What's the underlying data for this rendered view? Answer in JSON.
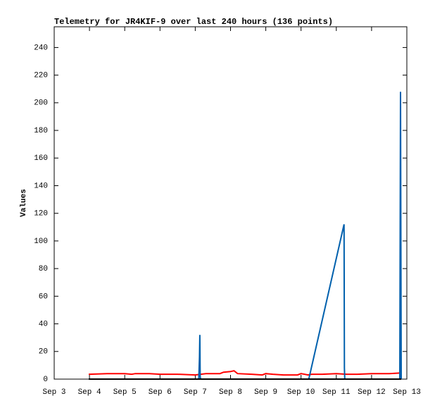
{
  "chart_data": {
    "type": "line",
    "title": "Telemetry for JR4KIF-9 over last 240 hours (136 points)",
    "y_label": "Values",
    "xlim": [
      3,
      13
    ],
    "xticks": [
      {
        "value": 3,
        "label": "Sep 3"
      },
      {
        "value": 4,
        "label": "Sep 4"
      },
      {
        "value": 5,
        "label": "Sep 5"
      },
      {
        "value": 6,
        "label": "Sep 6"
      },
      {
        "value": 7,
        "label": "Sep 7"
      },
      {
        "value": 8,
        "label": "Sep 8"
      },
      {
        "value": 9,
        "label": "Sep 9"
      },
      {
        "value": 10,
        "label": "Sep 10"
      },
      {
        "value": 11,
        "label": "Sep 11"
      },
      {
        "value": 12,
        "label": "Sep 12"
      },
      {
        "value": 13,
        "label": "Sep 13"
      }
    ],
    "ylim": [
      0,
      255
    ],
    "yticks": [
      0,
      20,
      40,
      60,
      80,
      100,
      120,
      140,
      160,
      180,
      200,
      220,
      240
    ],
    "series": [
      {
        "color": "#ff0000",
        "x": [
          3.98,
          4.5,
          5.0,
          5.2,
          5.3,
          5.7,
          6.0,
          6.5,
          7.0,
          7.3,
          7.7,
          7.8,
          8.0,
          8.1,
          8.2,
          8.6,
          8.9,
          9.0,
          9.2,
          9.5,
          9.9,
          10.0,
          10.2,
          10.3,
          10.6,
          11.0,
          11.3,
          11.6,
          12.0,
          12.5,
          12.84
        ],
        "values": [
          3.5,
          4,
          4,
          3.5,
          4,
          4,
          3.5,
          3.5,
          3,
          4,
          4,
          5,
          5.5,
          6,
          4,
          3.5,
          3,
          4,
          3.5,
          3,
          3,
          4,
          3,
          3.5,
          3.5,
          4,
          3.5,
          3.5,
          4,
          4,
          4.5
        ]
      },
      {
        "color": "#0060ad",
        "x": [
          3.98,
          7.1,
          7.12,
          7.13,
          7.14,
          7.15,
          7.2,
          10.22,
          11.22,
          11.23,
          11.24,
          12.8,
          12.82,
          12.83,
          12.84
        ],
        "values": [
          0,
          0,
          16,
          32,
          2,
          0,
          0,
          0,
          112,
          8,
          0,
          0,
          208,
          104,
          0
        ]
      },
      {
        "color": "#000000",
        "x": [
          3.98,
          12.84
        ],
        "values": [
          0,
          0
        ]
      }
    ]
  }
}
